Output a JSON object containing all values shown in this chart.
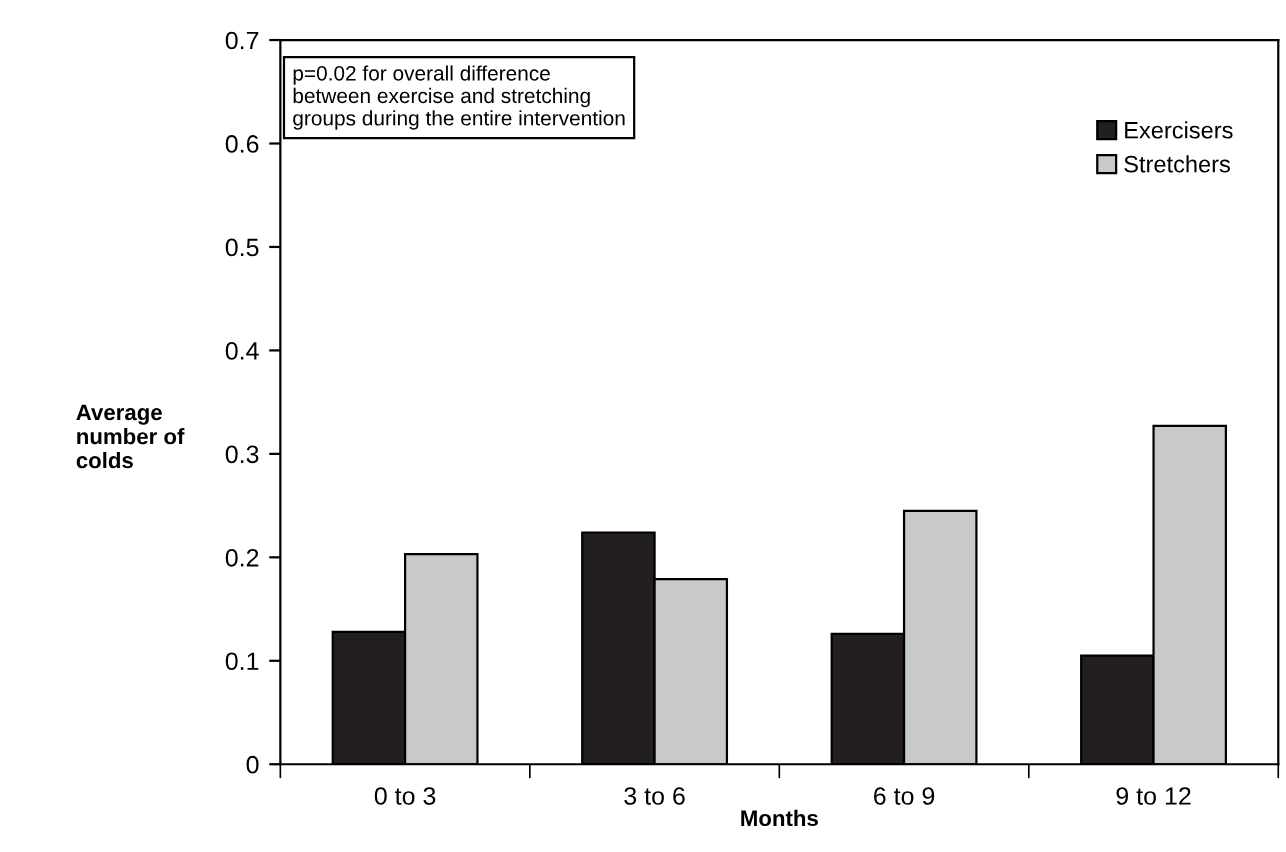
{
  "chart_data": {
    "type": "bar",
    "xlabel": "Months",
    "ylabel": "Average\nnumber of\ncolds",
    "categories": [
      "0 to 3",
      "3 to 6",
      "6 to 9",
      "9 to 12"
    ],
    "series": [
      {
        "name": "Exercisers",
        "color": "#231f20",
        "values": [
          0.128,
          0.224,
          0.126,
          0.105
        ]
      },
      {
        "name": "Stretchers",
        "color": "#c8c9cb",
        "values": [
          0.203,
          0.179,
          0.245,
          0.327
        ]
      }
    ],
    "ylim": [
      0,
      0.7
    ],
    "yticks": [
      0,
      0.1,
      0.2,
      0.3,
      0.4,
      0.5,
      0.6,
      0.7
    ],
    "annotations": [
      "p=0.02 for overall difference\nbetween exercise and stretching\ngroups during the entire intervention"
    ],
    "legend": "top right",
    "grid": false
  }
}
